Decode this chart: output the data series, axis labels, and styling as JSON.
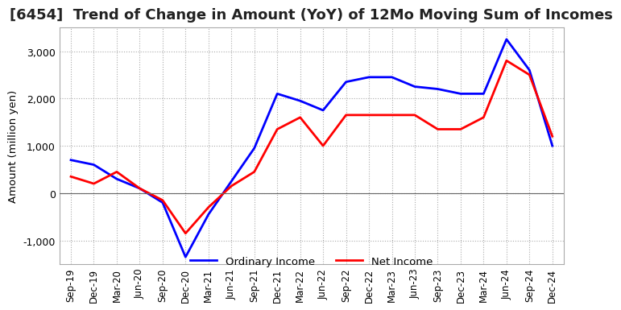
{
  "title": "[6454]  Trend of Change in Amount (YoY) of 12Mo Moving Sum of Incomes",
  "ylabel": "Amount (million yen)",
  "x_labels": [
    "Sep-19",
    "Dec-19",
    "Mar-20",
    "Jun-20",
    "Sep-20",
    "Dec-20",
    "Mar-21",
    "Jun-21",
    "Sep-21",
    "Dec-21",
    "Mar-22",
    "Jun-22",
    "Sep-22",
    "Dec-22",
    "Mar-23",
    "Jun-23",
    "Sep-23",
    "Dec-23",
    "Mar-24",
    "Jun-24",
    "Sep-24",
    "Dec-24"
  ],
  "ordinary_income": [
    700,
    600,
    300,
    100,
    -200,
    -1350,
    -450,
    250,
    950,
    2100,
    1950,
    1750,
    2350,
    2450,
    2450,
    2250,
    2200,
    2100,
    2100,
    3250,
    2600,
    1000
  ],
  "net_income": [
    350,
    200,
    450,
    100,
    -150,
    -850,
    -300,
    150,
    450,
    1350,
    1600,
    1000,
    1650,
    1650,
    1650,
    1650,
    1350,
    1350,
    1600,
    2800,
    2500,
    1200
  ],
  "ordinary_color": "#0000ff",
  "net_color": "#ff0000",
  "ylim": [
    -1500,
    3500
  ],
  "yticks": [
    -1000,
    0,
    1000,
    2000,
    3000
  ],
  "background_color": "#ffffff",
  "grid_color": "#aaaaaa",
  "title_fontsize": 13,
  "axis_fontsize": 10,
  "legend_labels": [
    "Ordinary Income",
    "Net Income"
  ]
}
